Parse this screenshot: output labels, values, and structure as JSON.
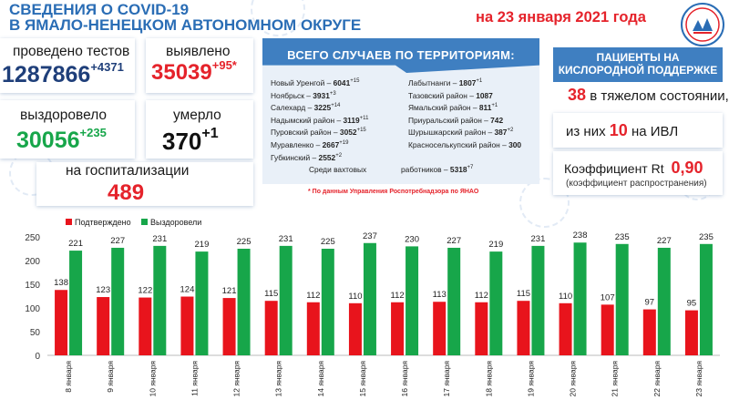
{
  "header": {
    "title_line1": "СВЕДЕНИЯ О COVID-19",
    "title_line2": "В ЯМАЛО-НЕНЕЦКОМ АВТОНОМНОМ ОКРУГЕ",
    "date": "на 23 января 2021 года"
  },
  "stats": {
    "tests_label": "проведено тестов",
    "tests_value": "1287866",
    "tests_delta": "+4371",
    "detected_label": "выявлено",
    "detected_value": "35039",
    "detected_delta": "+95*",
    "recovered_label": "выздоровело",
    "recovered_value": "30056",
    "recovered_delta": "+235",
    "died_label": "умерло",
    "died_value": "370",
    "died_delta": "+1",
    "hosp_label": "на госпитализации",
    "hosp_value": "489"
  },
  "territories": {
    "heading": "ВСЕГО СЛУЧАЕВ ПО ТЕРРИТОРИЯМ:",
    "left": [
      {
        "name": "Новый Уренгой – ",
        "value": "6041",
        "delta": "+15"
      },
      {
        "name": "Ноябрьск – ",
        "value": "3931",
        "delta": "+3"
      },
      {
        "name": "Салехард – ",
        "value": "3225",
        "delta": "+14"
      },
      {
        "name": "Надымский район – ",
        "value": "3119",
        "delta": "+11"
      },
      {
        "name": "Пуровский район – ",
        "value": "3052",
        "delta": "+15"
      },
      {
        "name": "Муравленко – ",
        "value": "2667",
        "delta": "+19"
      },
      {
        "name": "Губкинский – ",
        "value": "2552",
        "delta": "+2"
      }
    ],
    "right": [
      {
        "name": "Лабытнанги – ",
        "value": "1807",
        "delta": "+1"
      },
      {
        "name": "Тазовский район – ",
        "value": "1087",
        "delta": ""
      },
      {
        "name": "Ямальский район – ",
        "value": "811",
        "delta": "+1"
      },
      {
        "name": "Приуральский район – ",
        "value": "742",
        "delta": ""
      },
      {
        "name": "Шурышкарский район – ",
        "value": "387",
        "delta": "+2"
      },
      {
        "name": "Красноселькупский район – ",
        "value": "300",
        "delta": ""
      }
    ],
    "shift_label": "Среди вахтовых",
    "shift_label2": "работников – ",
    "shift_value": "5318",
    "shift_delta": "+7",
    "footnote": "* По данным Управления Роспотребнадзора по ЯНАО"
  },
  "oxygen": {
    "heading_line1": "ПАЦИЕНТЫ НА",
    "heading_line2": "КИСЛОРОДНОЙ ПОДДЕРЖКЕ",
    "severe_value": "38",
    "severe_text": "в тяжелом состоянии,",
    "ivl_pre": "из них",
    "ivl_value": "10",
    "ivl_post": "на ИВЛ",
    "rt_label": "Коэффициент Rt",
    "rt_value": "0,90",
    "rt_note": "(коэффициент распространения)"
  },
  "chart_data": {
    "type": "bar",
    "categories": [
      "8 января",
      "9 января",
      "10 января",
      "11 января",
      "12 января",
      "13 января",
      "14 января",
      "15 января",
      "16 января",
      "17 января",
      "18 января",
      "19 января",
      "20 января",
      "21 января",
      "22 января",
      "23 января"
    ],
    "series": [
      {
        "name": "Подтверждено",
        "color": "#e8141c",
        "values": [
          138,
          123,
          122,
          124,
          121,
          115,
          112,
          110,
          112,
          113,
          112,
          115,
          110,
          107,
          97,
          95
        ]
      },
      {
        "name": "Выздоровели",
        "color": "#17a64a",
        "values": [
          221,
          227,
          231,
          219,
          225,
          231,
          225,
          237,
          230,
          227,
          219,
          231,
          238,
          235,
          227,
          235
        ]
      }
    ],
    "ylim": [
      0,
      250
    ],
    "yticks": [
      0,
      50,
      100,
      150,
      200,
      250
    ],
    "grid": false,
    "legend_position": "top-left"
  }
}
